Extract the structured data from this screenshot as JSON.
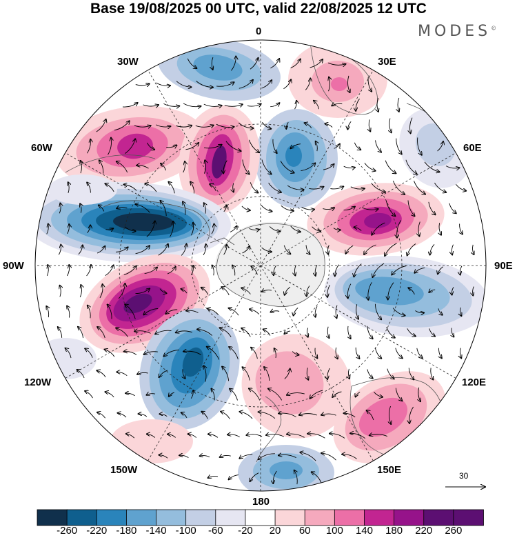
{
  "title": "Base 19/08/2025 00 UTC, valid 22/08/2025 12 UTC",
  "brand": "MODES",
  "brand_mark": "©",
  "longitude_labels": {
    "lon_0": "0",
    "lon_30E": "30E",
    "lon_60E": "60E",
    "lon_90E": "90E",
    "lon_120E": "120E",
    "lon_150E": "150E",
    "lon_180": "180",
    "lon_150W": "150W",
    "lon_120W": "120W",
    "lon_90W": "90W",
    "lon_60W": "60W",
    "lon_30W": "30W"
  },
  "reference_vector": "30",
  "colorbar": {
    "labels": [
      "-260",
      "-220",
      "-180",
      "-140",
      "-100",
      "-60",
      "-20",
      "20",
      "60",
      "100",
      "140",
      "180",
      "220",
      "260"
    ],
    "colors": [
      "#10304c",
      "#0f5f8e",
      "#2a84bb",
      "#5fa2cf",
      "#94bddd",
      "#c3cfe5",
      "#e6e6f2",
      "#ffffff",
      "#fbd6d9",
      "#f5a9bd",
      "#ec6fa7",
      "#c22591",
      "#96138a",
      "#5c0f72"
    ]
  }
}
